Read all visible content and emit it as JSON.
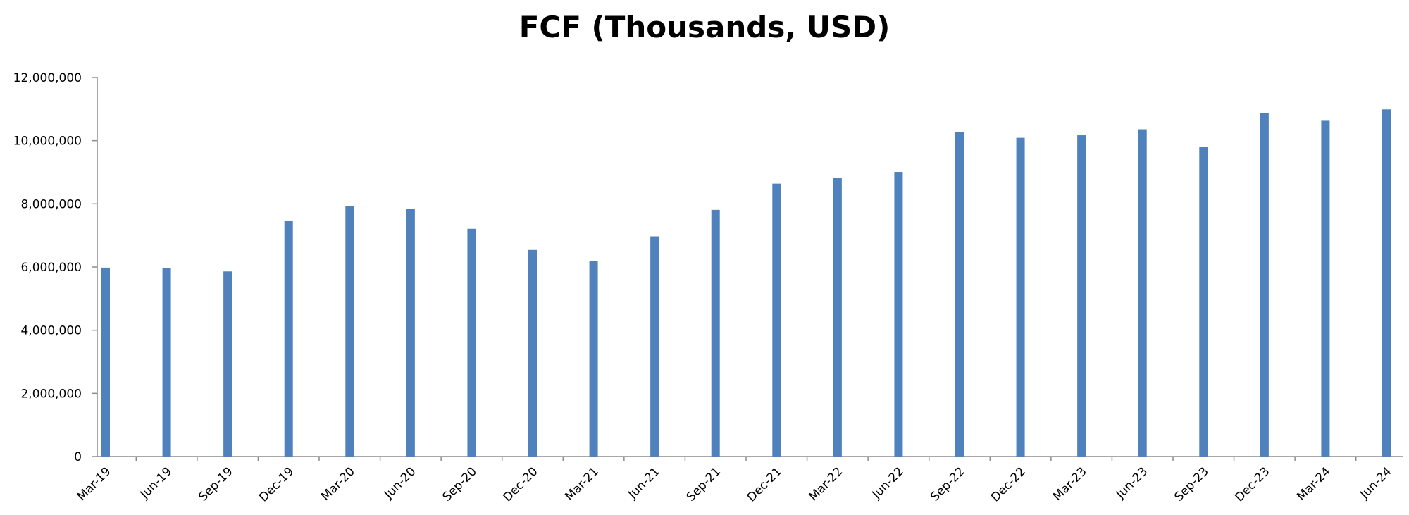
{
  "chart_data": {
    "type": "bar",
    "title": "FCF (Thousands, USD)",
    "xlabel": "",
    "ylabel": "",
    "categories": [
      "Mar-19",
      "Jun-19",
      "Sep-19",
      "Dec-19",
      "Mar-20",
      "Jun-20",
      "Sep-20",
      "Dec-20",
      "Mar-21",
      "Jun-21",
      "Sep-21",
      "Dec-21",
      "Mar-22",
      "Jun-22",
      "Sep-22",
      "Dec-22",
      "Mar-23",
      "Jun-23",
      "Sep-23",
      "Dec-23",
      "Mar-24",
      "Jun-24"
    ],
    "values": [
      5980000,
      5970000,
      5860000,
      7450000,
      7930000,
      7840000,
      7210000,
      6540000,
      6180000,
      6970000,
      7810000,
      8640000,
      8810000,
      9010000,
      10280000,
      10090000,
      10170000,
      10360000,
      9800000,
      10880000,
      10630000,
      10990000
    ],
    "ylim": [
      0,
      12000000
    ],
    "yticks": [
      0,
      2000000,
      4000000,
      6000000,
      8000000,
      10000000,
      12000000
    ],
    "ytick_labels": [
      "0",
      "2,000,000",
      "4,000,000",
      "6,000,000",
      "8,000,000",
      "10,000,000",
      "12,000,000"
    ],
    "grid": false,
    "legend": "none",
    "bar_color": "#4f81bd"
  }
}
